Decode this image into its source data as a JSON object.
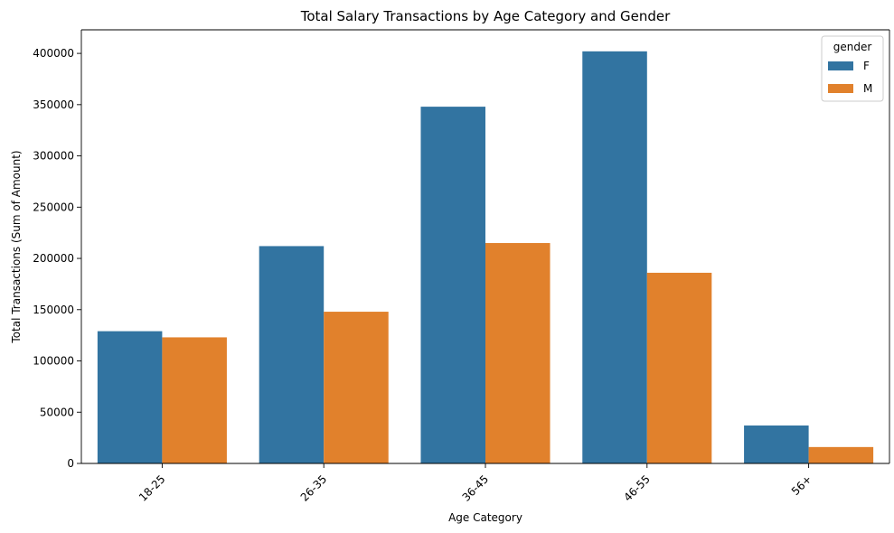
{
  "chart_data": {
    "type": "bar",
    "title": "Total Salary Transactions by Age Category and Gender",
    "xlabel": "Age Category",
    "ylabel": "Total Transactions (Sum of Amount)",
    "categories": [
      "18-25",
      "26-35",
      "36-45",
      "46-55",
      "56+"
    ],
    "series": [
      {
        "name": "F",
        "values": [
          129000,
          212000,
          348000,
          402000,
          37000
        ],
        "color": "#3274a1"
      },
      {
        "name": "M",
        "values": [
          123000,
          148000,
          215000,
          186000,
          16000
        ],
        "color": "#e1812c"
      }
    ],
    "ylim": [
      0,
      423000
    ],
    "yticks": [
      0,
      50000,
      100000,
      150000,
      200000,
      250000,
      300000,
      350000,
      400000
    ],
    "legend": {
      "title": "gender",
      "position": "top-right"
    },
    "grid": false
  }
}
